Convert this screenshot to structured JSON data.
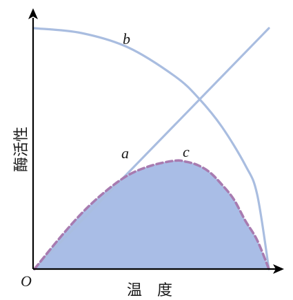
{
  "chart_data": {
    "type": "line",
    "xlabel": "温　度",
    "ylabel": "酶活性",
    "origin_label": "O",
    "xlim": [
      0,
      1
    ],
    "ylim": [
      0,
      1
    ],
    "grid": false,
    "series": [
      {
        "name": "a",
        "color": "#a9bde0",
        "style": "solid",
        "x": [
          0,
          1
        ],
        "y": [
          0,
          1
        ]
      },
      {
        "name": "b",
        "color": "#a9bde0",
        "style": "solid",
        "x": [
          0,
          0.2,
          0.4,
          0.6,
          0.7,
          0.8,
          0.9,
          0.95,
          1.0
        ],
        "y": [
          1.0,
          0.98,
          0.92,
          0.8,
          0.71,
          0.59,
          0.43,
          0.31,
          0.0
        ]
      },
      {
        "name": "c",
        "color": "#a87bb0",
        "fill": "#a9bde6",
        "style": "dashed",
        "x": [
          0,
          0.1,
          0.2,
          0.3,
          0.4,
          0.5,
          0.6,
          0.65,
          0.7,
          0.75,
          0.8,
          0.85,
          0.9,
          0.95,
          1.0
        ],
        "y": [
          0,
          0.12,
          0.23,
          0.32,
          0.39,
          0.43,
          0.45,
          0.445,
          0.43,
          0.4,
          0.35,
          0.29,
          0.2,
          0.12,
          0.0
        ]
      }
    ],
    "colors": {
      "axis": "#000000"
    }
  }
}
